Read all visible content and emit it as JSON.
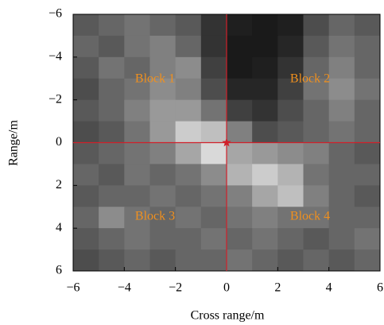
{
  "chart_data": {
    "type": "heatmap",
    "x_label": "Cross range/m",
    "y_label": "Range/m",
    "xlim": [
      -6,
      6
    ],
    "ylim": [
      -6,
      6
    ],
    "y_inverted": true,
    "xticks": [
      {
        "value": -6,
        "label": "−6"
      },
      {
        "value": -4,
        "label": "−4"
      },
      {
        "value": -2,
        "label": "−2"
      },
      0,
      2,
      4,
      6
    ],
    "yticks": [
      {
        "value": -6,
        "label": "−6"
      },
      {
        "value": -4,
        "label": "−4"
      },
      {
        "value": -2,
        "label": "−2"
      },
      0,
      2,
      4,
      6
    ],
    "colormap": "gray",
    "values": [
      [
        0.35,
        0.4,
        0.45,
        0.4,
        0.35,
        0.2,
        0.12,
        0.1,
        0.12,
        0.3,
        0.4,
        0.35
      ],
      [
        0.4,
        0.35,
        0.45,
        0.5,
        0.4,
        0.2,
        0.1,
        0.1,
        0.15,
        0.35,
        0.45,
        0.4
      ],
      [
        0.35,
        0.45,
        0.4,
        0.5,
        0.55,
        0.25,
        0.1,
        0.12,
        0.2,
        0.4,
        0.5,
        0.4
      ],
      [
        0.3,
        0.4,
        0.45,
        0.55,
        0.5,
        0.3,
        0.15,
        0.15,
        0.25,
        0.45,
        0.55,
        0.45
      ],
      [
        0.35,
        0.4,
        0.5,
        0.6,
        0.6,
        0.45,
        0.25,
        0.2,
        0.3,
        0.4,
        0.5,
        0.4
      ],
      [
        0.3,
        0.35,
        0.45,
        0.6,
        0.8,
        0.75,
        0.5,
        0.3,
        0.35,
        0.4,
        0.45,
        0.4
      ],
      [
        0.35,
        0.4,
        0.45,
        0.5,
        0.65,
        0.85,
        0.65,
        0.6,
        0.55,
        0.5,
        0.4,
        0.35
      ],
      [
        0.4,
        0.35,
        0.45,
        0.4,
        0.45,
        0.55,
        0.7,
        0.8,
        0.7,
        0.45,
        0.4,
        0.4
      ],
      [
        0.35,
        0.4,
        0.4,
        0.45,
        0.4,
        0.45,
        0.5,
        0.65,
        0.75,
        0.5,
        0.4,
        0.35
      ],
      [
        0.4,
        0.55,
        0.45,
        0.4,
        0.45,
        0.4,
        0.45,
        0.5,
        0.45,
        0.45,
        0.4,
        0.4
      ],
      [
        0.35,
        0.4,
        0.45,
        0.4,
        0.4,
        0.45,
        0.4,
        0.45,
        0.4,
        0.35,
        0.4,
        0.45
      ],
      [
        0.3,
        0.35,
        0.4,
        0.35,
        0.4,
        0.4,
        0.45,
        0.4,
        0.35,
        0.4,
        0.35,
        0.4
      ]
    ],
    "crosshair": {
      "x": 0,
      "y": 0,
      "color": "#d0202a"
    },
    "annotations": [
      "Block 1",
      "Block 2",
      "Block 3",
      "Block 4"
    ],
    "annotation_color": "#f0901e"
  }
}
